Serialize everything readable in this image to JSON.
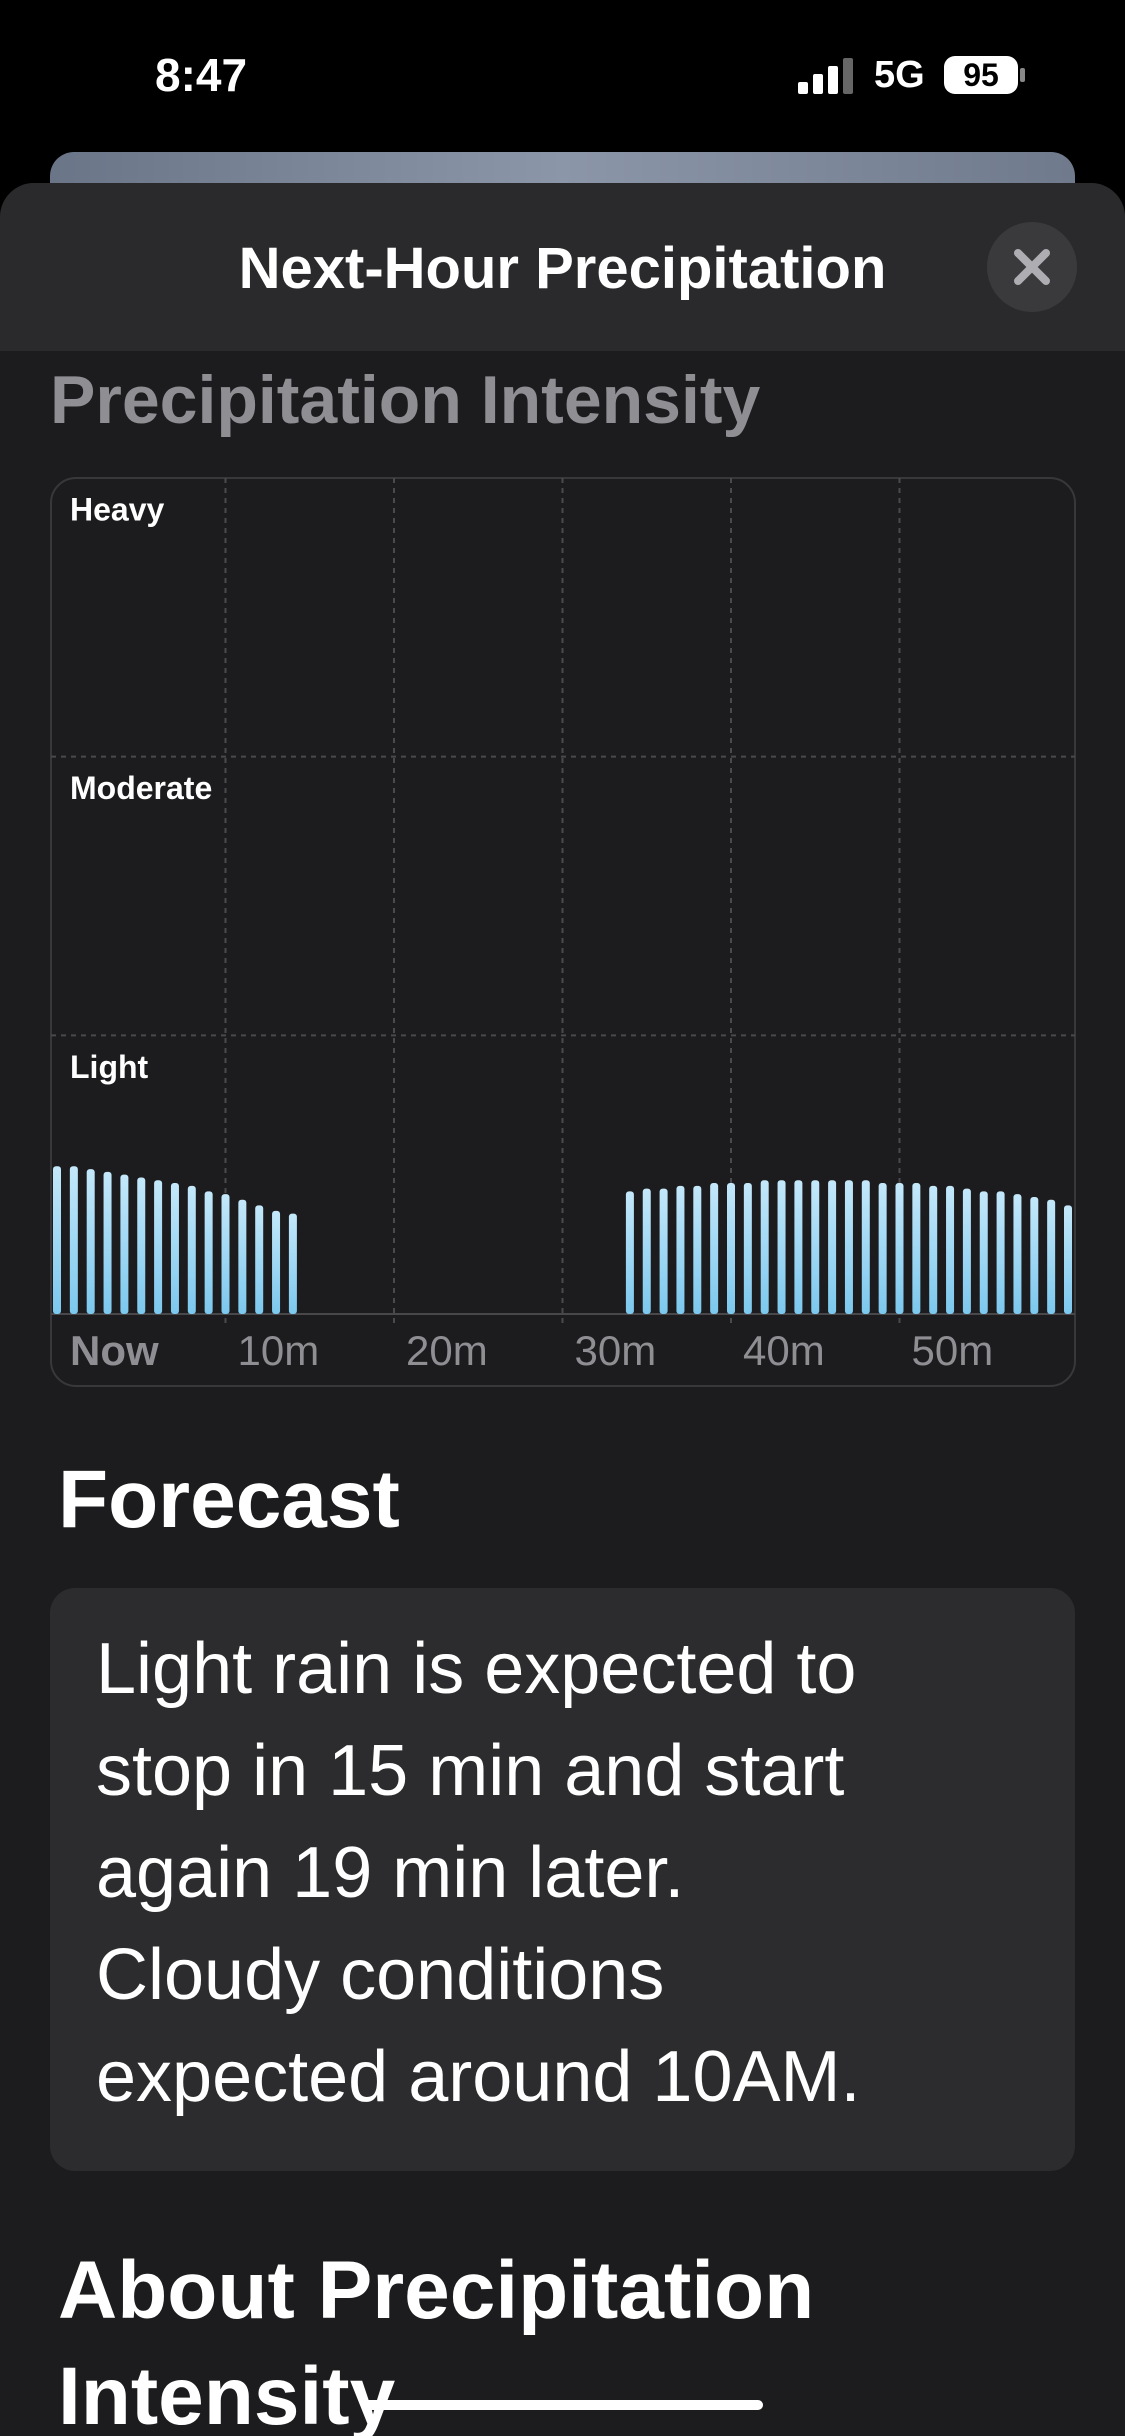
{
  "status_bar": {
    "time": "8:47",
    "network": "5G",
    "battery": "95"
  },
  "header": {
    "title": "Next-Hour Precipitation"
  },
  "section_title": "Precipitation Intensity",
  "chart_data": {
    "type": "bar",
    "x": [
      0,
      1,
      2,
      3,
      4,
      5,
      6,
      7,
      8,
      9,
      10,
      11,
      12,
      13,
      14,
      15,
      16,
      17,
      18,
      19,
      20,
      21,
      22,
      23,
      24,
      25,
      26,
      27,
      28,
      29,
      30,
      31,
      32,
      33,
      34,
      35,
      36,
      37,
      38,
      39,
      40,
      41,
      42,
      43,
      44,
      45,
      46,
      47,
      48,
      49,
      50,
      51,
      52,
      53,
      54,
      55,
      56,
      57,
      58,
      59,
      60
    ],
    "values": [
      0.53,
      0.53,
      0.52,
      0.51,
      0.5,
      0.49,
      0.48,
      0.47,
      0.46,
      0.44,
      0.43,
      0.41,
      0.39,
      0.37,
      0.36,
      0,
      0,
      0,
      0,
      0,
      0,
      0,
      0,
      0,
      0,
      0,
      0,
      0,
      0,
      0,
      0,
      0,
      0,
      0,
      0.44,
      0.45,
      0.45,
      0.46,
      0.46,
      0.47,
      0.47,
      0.47,
      0.48,
      0.48,
      0.48,
      0.48,
      0.48,
      0.48,
      0.48,
      0.47,
      0.47,
      0.47,
      0.46,
      0.46,
      0.45,
      0.44,
      0.44,
      0.43,
      0.42,
      0.41,
      0.39
    ],
    "color": "#8fd3f4",
    "xlim": [
      0,
      60
    ],
    "xticks": [
      {
        "value": 0,
        "label": "Now"
      },
      {
        "value": 10,
        "label": "10m"
      },
      {
        "value": 20,
        "label": "20m"
      },
      {
        "value": 30,
        "label": "30m"
      },
      {
        "value": 40,
        "label": "40m"
      },
      {
        "value": 50,
        "label": "50m"
      }
    ],
    "ylim": [
      0,
      3
    ],
    "yticks": [
      {
        "value": 1,
        "label": "Light"
      },
      {
        "value": 2,
        "label": "Moderate"
      },
      {
        "value": 3,
        "label": "Heavy"
      }
    ],
    "grid": true
  },
  "forecast": {
    "heading": "Forecast",
    "lines": [
      "Light rain is expected to",
      "stop in 15 min and start",
      "again 19 min later.",
      "Cloudy conditions",
      "expected around 10AM."
    ]
  },
  "about": {
    "heading": "About Precipitation Intensity"
  }
}
